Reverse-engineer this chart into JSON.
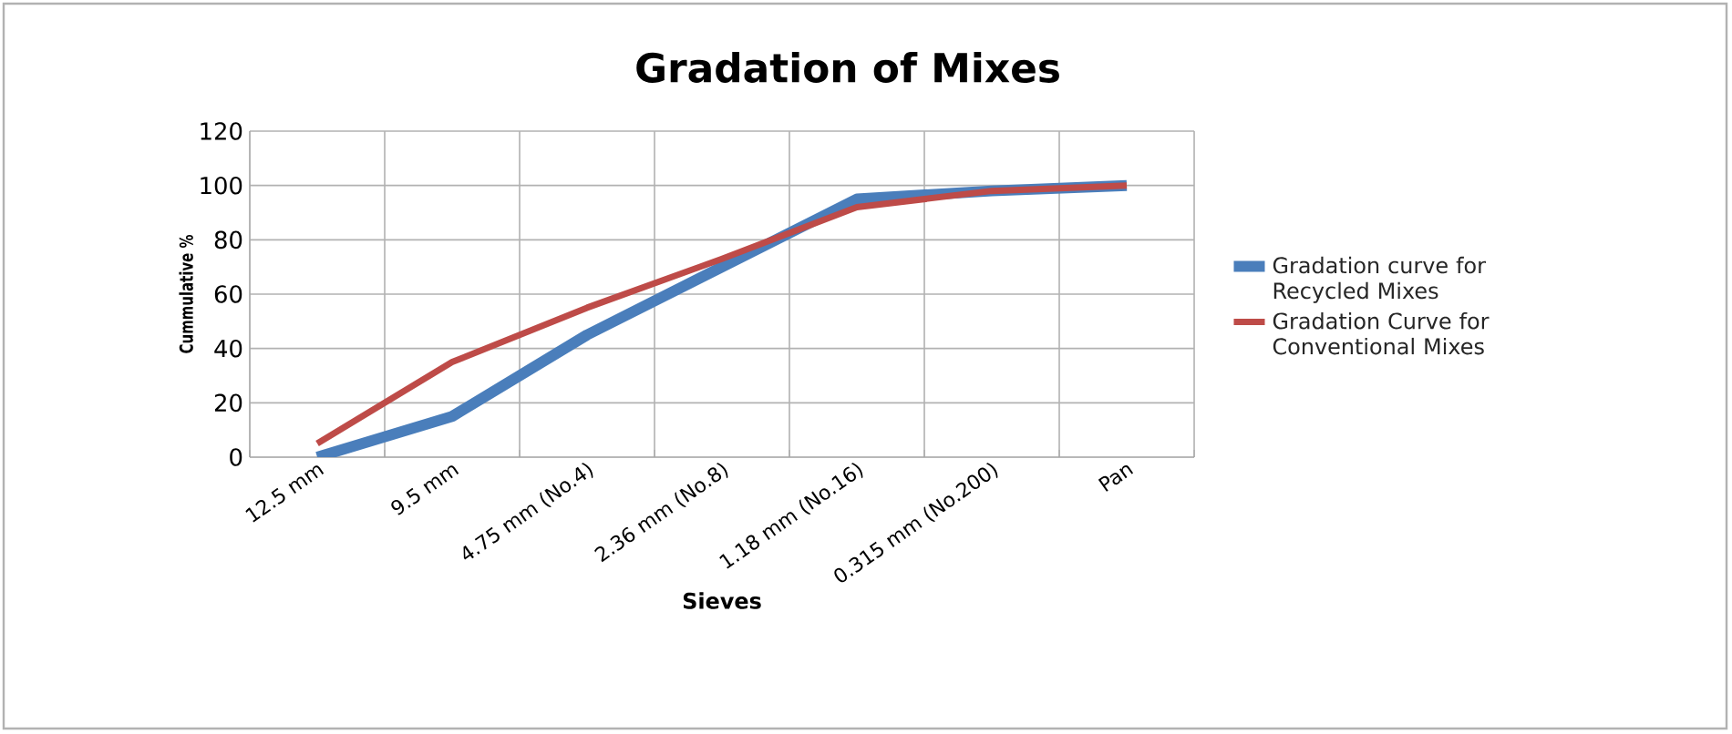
{
  "chart_data": {
    "type": "line",
    "title": "Gradation of Mixes",
    "xlabel": "Sieves",
    "ylabel": "Cummulative %",
    "categories": [
      "12.5 mm",
      "9.5 mm",
      "4.75 mm (No.4)",
      "2.36 mm (No.8)",
      "1.18 mm (No.16)",
      "0.315 mm (No.200)",
      "Pan"
    ],
    "series": [
      {
        "name": "Gradation curve for Recycled Mixes",
        "color": "#4a7ebb",
        "values": [
          0,
          15,
          45,
          70,
          95,
          98,
          100
        ]
      },
      {
        "name": "Gradation Curve for Conventional Mixes",
        "color": "#be4b48",
        "values": [
          5,
          35,
          55,
          73,
          92,
          98,
          100
        ]
      }
    ],
    "ylim": [
      0,
      120
    ],
    "yticks": [
      0,
      20,
      40,
      60,
      80,
      100,
      120
    ],
    "grid": true,
    "legend": "right"
  }
}
